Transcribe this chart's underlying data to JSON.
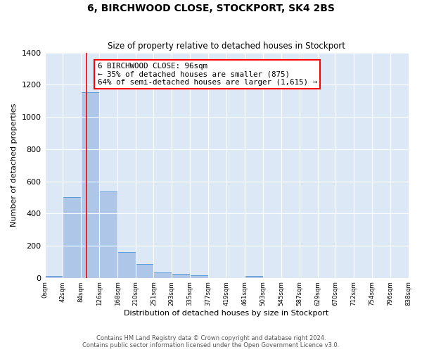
{
  "title": "6, BIRCHWOOD CLOSE, STOCKPORT, SK4 2BS",
  "subtitle": "Size of property relative to detached houses in Stockport",
  "xlabel": "Distribution of detached houses by size in Stockport",
  "ylabel": "Number of detached properties",
  "bin_edges": [
    0,
    42,
    84,
    126,
    168,
    210,
    251,
    293,
    335,
    377,
    419,
    461,
    503,
    545,
    587,
    629,
    670,
    712,
    754,
    796,
    838
  ],
  "bar_heights": [
    10,
    500,
    1155,
    535,
    160,
    85,
    35,
    25,
    15,
    0,
    0,
    10,
    0,
    0,
    0,
    0,
    0,
    0,
    0,
    0
  ],
  "bar_color": "#aec6e8",
  "bar_edgecolor": "#5b9bd5",
  "bg_color": "#dce8f5",
  "grid_color": "#ffffff",
  "fig_bg_color": "#ffffff",
  "red_line_x": 96,
  "annotation_box_text": "6 BIRCHWOOD CLOSE: 96sqm\n← 35% of detached houses are smaller (875)\n64% of semi-detached houses are larger (1,615) →",
  "ylim": [
    0,
    1400
  ],
  "yticks": [
    0,
    200,
    400,
    600,
    800,
    1000,
    1200,
    1400
  ],
  "tick_labels": [
    "0sqm",
    "42sqm",
    "84sqm",
    "126sqm",
    "168sqm",
    "210sqm",
    "251sqm",
    "293sqm",
    "335sqm",
    "377sqm",
    "419sqm",
    "461sqm",
    "503sqm",
    "545sqm",
    "587sqm",
    "629sqm",
    "670sqm",
    "712sqm",
    "754sqm",
    "796sqm",
    "838sqm"
  ],
  "footer_line1": "Contains HM Land Registry data © Crown copyright and database right 2024.",
  "footer_line2": "Contains public sector information licensed under the Open Government Licence v3.0."
}
